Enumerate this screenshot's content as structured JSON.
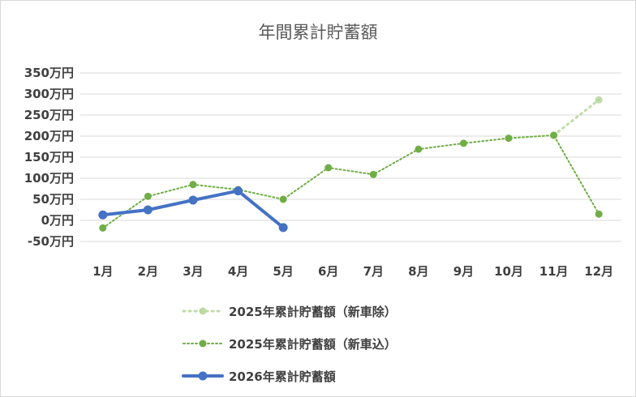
{
  "chart_data": {
    "type": "line",
    "title": "年間累計貯蓄額",
    "categories": [
      "1月",
      "2月",
      "3月",
      "4月",
      "5月",
      "6月",
      "7月",
      "8月",
      "9月",
      "10月",
      "11月",
      "12月"
    ],
    "y_tick_labels": [
      "350万円",
      "300万円",
      "250万円",
      "200万円",
      "150万円",
      "100万円",
      "50万円",
      "0万円",
      "-50万円"
    ],
    "y_ticks": [
      350,
      300,
      250,
      200,
      150,
      100,
      50,
      0,
      -50
    ],
    "ylim": [
      -50,
      350
    ],
    "grid": true,
    "legend_position": "bottom",
    "series": [
      {
        "name": "2025年累計貯蓄額（新車除）",
        "values": [
          null,
          null,
          null,
          null,
          null,
          null,
          null,
          null,
          null,
          null,
          202,
          286
        ],
        "color": "#b4d69a",
        "style": "dotted-faded"
      },
      {
        "name": "2025年累計貯蓄額（新車込）",
        "values": [
          -18,
          57,
          85,
          73,
          50,
          125,
          109,
          169,
          183,
          195,
          202,
          15
        ],
        "color": "#70ad47",
        "style": "dotted"
      },
      {
        "name": "2026年累計貯蓄額",
        "values": [
          13,
          25,
          48,
          70,
          -17,
          null,
          null,
          null,
          null,
          null,
          null,
          null
        ],
        "color": "#4472c4",
        "style": "solid"
      }
    ]
  }
}
